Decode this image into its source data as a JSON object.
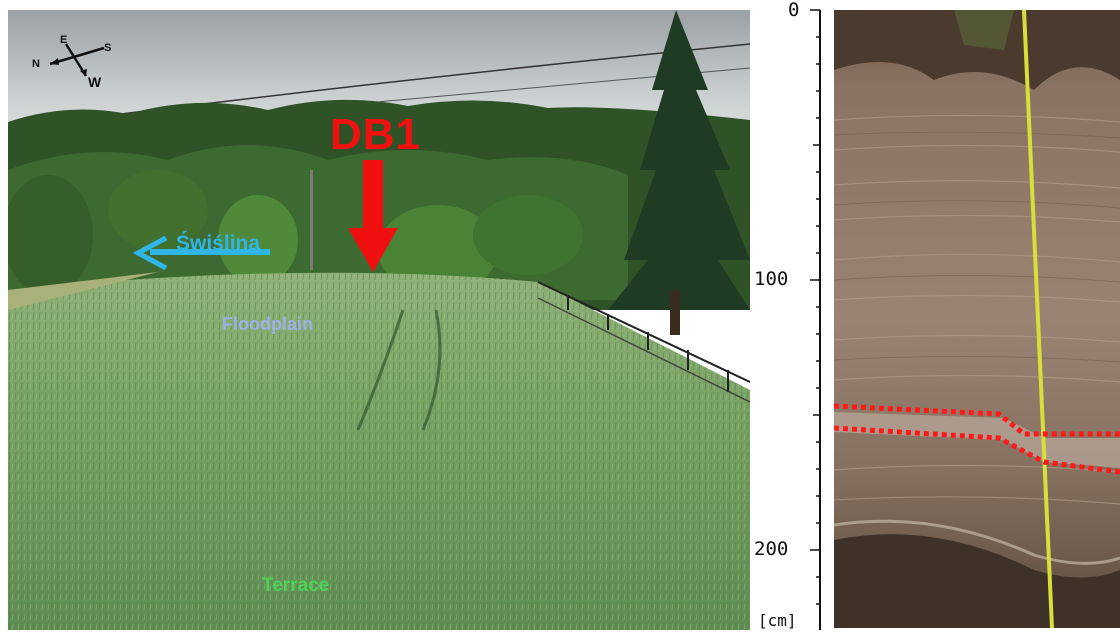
{
  "photo": {
    "profile_label": "DB1",
    "river_label": "Świślina",
    "floodplain_label": "Floodplain",
    "terrace_label": "Terrace",
    "compass": {
      "n": "N",
      "e": "E",
      "s": "S",
      "w": "W"
    }
  },
  "depth_scale": {
    "ticks": [
      "0",
      "100",
      "200"
    ],
    "unit": "[cm]"
  },
  "colors": {
    "profile_arrow": "#f01010",
    "river_arrow": "#2fb6e6",
    "horizon_lines": "#ff1a1a",
    "tape": "#d8df3a"
  }
}
